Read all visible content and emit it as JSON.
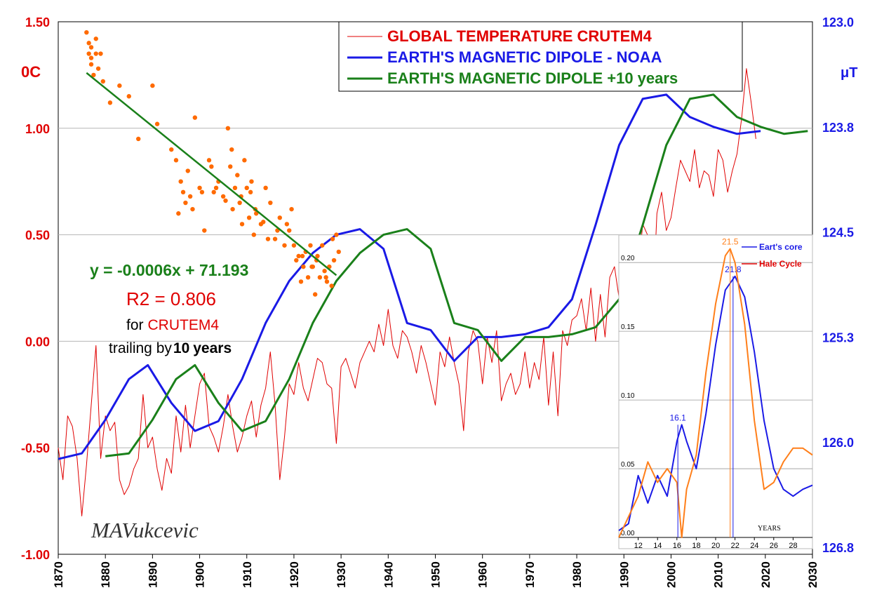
{
  "chart_data": {
    "type": "line",
    "x_axis": {
      "range": [
        1870,
        2030
      ],
      "ticks": [
        "1870",
        "1880",
        "1890",
        "1900",
        "1910",
        "1920",
        "1930",
        "1940",
        "1950",
        "1960",
        "1970",
        "1980",
        "1990",
        "2000",
        "2010",
        "2020",
        "2030"
      ]
    },
    "y_left": {
      "unit": "0C",
      "range": [
        -1.0,
        1.5
      ],
      "ticks": [
        "1.50",
        "1.00",
        "0.50",
        "0.00",
        "-0.50",
        "-1.00"
      ],
      "tick_values": [
        1.5,
        1.0,
        0.5,
        0.0,
        -0.5,
        -1.0
      ]
    },
    "y_right": {
      "unit": "μT",
      "range": [
        123.0,
        126.8
      ],
      "inverted": true,
      "ticks": [
        "123.0",
        "123.8",
        "124.5",
        "125.3",
        "126.0",
        "126.8"
      ],
      "tick_values": [
        123.0,
        123.75,
        124.5,
        125.25,
        126.0,
        126.75
      ]
    },
    "grid": true,
    "legend": {
      "placement": "top-right",
      "entries": [
        {
          "label": "GLOBAL TEMPERATURE CRUTEM4",
          "color": "#e00000"
        },
        {
          "label": "EARTH'S MAGNETIC DIPOLE - NOAA",
          "color": "#1a1ae6"
        },
        {
          "label": "EARTH'S MAGNETIC DIPOLE +",
          "label_suffix": "10 years",
          "color": "#1a801a"
        }
      ]
    },
    "annotations": {
      "equation": "y = -0.0006x + 71.193",
      "r2": "R2 = 0.806",
      "for_prefix": "for",
      "for_name": "CRUTEM4",
      "trailing_prefix": "trailing by",
      "trailing_num": "10",
      "trailing_unit": "years",
      "signature": "MAVukcevic"
    },
    "series": [
      {
        "name": "GLOBAL TEMPERATURE CRUTEM4",
        "axis": "left",
        "color": "#e00000",
        "x": [
          1870,
          1871,
          1872,
          1873,
          1874,
          1875,
          1876,
          1877,
          1878,
          1879,
          1880,
          1881,
          1882,
          1883,
          1884,
          1885,
          1886,
          1887,
          1888,
          1889,
          1890,
          1891,
          1892,
          1893,
          1894,
          1895,
          1896,
          1897,
          1898,
          1899,
          1900,
          1901,
          1902,
          1903,
          1904,
          1905,
          1906,
          1907,
          1908,
          1909,
          1910,
          1911,
          1912,
          1913,
          1914,
          1915,
          1916,
          1917,
          1918,
          1919,
          1920,
          1921,
          1922,
          1923,
          1924,
          1925,
          1926,
          1927,
          1928,
          1929,
          1930,
          1931,
          1932,
          1933,
          1934,
          1935,
          1936,
          1937,
          1938,
          1939,
          1940,
          1941,
          1942,
          1943,
          1944,
          1945,
          1946,
          1947,
          1948,
          1949,
          1950,
          1951,
          1952,
          1953,
          1954,
          1955,
          1956,
          1957,
          1958,
          1959,
          1960,
          1961,
          1962,
          1963,
          1964,
          1965,
          1966,
          1967,
          1968,
          1969,
          1970,
          1971,
          1972,
          1973,
          1974,
          1975,
          1976,
          1977,
          1978,
          1979,
          1980,
          1981,
          1982,
          1983,
          1984,
          1985,
          1986,
          1987,
          1988,
          1989,
          1990,
          1991,
          1992,
          1993,
          1994,
          1995,
          1996,
          1997,
          1998,
          1999,
          2000,
          2001,
          2002,
          2003,
          2004,
          2005,
          2006,
          2007,
          2008,
          2009,
          2010,
          2011,
          2012,
          2013,
          2014,
          2015,
          2016,
          2017,
          2018
        ],
        "y": [
          -0.5,
          -0.65,
          -0.35,
          -0.4,
          -0.55,
          -0.82,
          -0.58,
          -0.3,
          -0.02,
          -0.55,
          -0.35,
          -0.42,
          -0.38,
          -0.65,
          -0.72,
          -0.68,
          -0.6,
          -0.55,
          -0.25,
          -0.5,
          -0.45,
          -0.6,
          -0.7,
          -0.55,
          -0.62,
          -0.35,
          -0.52,
          -0.3,
          -0.5,
          -0.35,
          -0.2,
          -0.15,
          -0.4,
          -0.45,
          -0.52,
          -0.4,
          -0.25,
          -0.4,
          -0.52,
          -0.45,
          -0.35,
          -0.28,
          -0.45,
          -0.3,
          -0.22,
          -0.05,
          -0.3,
          -0.65,
          -0.45,
          -0.2,
          -0.25,
          -0.1,
          -0.22,
          -0.28,
          -0.18,
          -0.08,
          -0.1,
          -0.2,
          -0.22,
          -0.48,
          -0.12,
          -0.08,
          -0.15,
          -0.22,
          -0.1,
          -0.05,
          0.0,
          -0.05,
          0.08,
          -0.02,
          0.15,
          -0.02,
          -0.08,
          0.05,
          0.02,
          -0.05,
          -0.15,
          -0.02,
          -0.1,
          -0.2,
          -0.3,
          -0.05,
          -0.12,
          0.02,
          -0.1,
          -0.2,
          -0.42,
          -0.05,
          0.05,
          0.0,
          -0.2,
          0.02,
          -0.1,
          0.05,
          -0.28,
          -0.2,
          -0.15,
          -0.25,
          -0.2,
          -0.05,
          -0.22,
          -0.1,
          -0.18,
          0.02,
          -0.3,
          -0.05,
          -0.35,
          0.05,
          -0.02,
          0.1,
          0.12,
          0.2,
          0.05,
          0.25,
          0.0,
          0.22,
          0.02,
          0.3,
          0.35,
          0.2,
          0.45,
          0.38,
          0.15,
          0.32,
          0.55,
          0.5,
          0.1,
          0.6,
          0.7,
          0.52,
          0.58,
          0.72,
          0.85,
          0.8,
          0.75,
          0.9,
          0.72,
          0.8,
          0.78,
          0.68,
          0.9,
          0.85,
          0.7,
          0.8,
          0.88,
          1.05,
          1.28,
          1.12,
          0.95
        ]
      },
      {
        "name": "EARTH'S MAGNETIC DIPOLE - NOAA",
        "axis": "right",
        "color": "#1a1ae6",
        "x": [
          1870,
          1875,
          1880,
          1885,
          1889,
          1894,
          1899,
          1904,
          1909,
          1914,
          1919,
          1924,
          1929,
          1934,
          1939,
          1944,
          1949,
          1954,
          1959,
          1964,
          1969,
          1974,
          1979,
          1984,
          1989,
          1994,
          1999,
          2004,
          2009,
          2014,
          2019
        ],
        "y": [
          126.12,
          126.08,
          125.84,
          125.55,
          125.45,
          125.72,
          125.92,
          125.85,
          125.55,
          125.15,
          124.85,
          124.65,
          124.52,
          124.48,
          124.62,
          125.15,
          125.2,
          125.42,
          125.25,
          125.25,
          125.23,
          125.18,
          124.98,
          124.45,
          123.88,
          123.55,
          123.52,
          123.68,
          123.75,
          123.8,
          123.78
        ]
      },
      {
        "name": "EARTH'S MAGNETIC DIPOLE +10 years",
        "axis": "right",
        "color": "#1a801a",
        "x": [
          1880,
          1885,
          1890,
          1895,
          1899,
          1904,
          1909,
          1914,
          1919,
          1924,
          1929,
          1934,
          1939,
          1944,
          1949,
          1954,
          1959,
          1964,
          1969,
          1974,
          1979,
          1984,
          1989,
          1994,
          1999,
          2004,
          2009,
          2014,
          2019,
          2024,
          2029
        ],
        "y": [
          126.1,
          126.08,
          125.84,
          125.55,
          125.45,
          125.72,
          125.92,
          125.85,
          125.55,
          125.15,
          124.85,
          124.65,
          124.52,
          124.48,
          124.62,
          125.15,
          125.2,
          125.42,
          125.25,
          125.25,
          125.23,
          125.18,
          124.98,
          124.45,
          123.88,
          123.55,
          123.52,
          123.68,
          123.75,
          123.8,
          123.78
        ]
      },
      {
        "name": "scatter",
        "type": "scatter",
        "axis": "left",
        "color": "#ff6a00",
        "x": [
          1876,
          1876.5,
          1877,
          1877,
          1877.5,
          1878,
          1878,
          1876.5,
          1877,
          1878.5,
          1879,
          1879.5,
          1881,
          1883,
          1885,
          1887,
          1890,
          1891,
          1894,
          1895,
          1896,
          1896.5,
          1897,
          1897.5,
          1898,
          1899,
          1900,
          1901,
          1902,
          1903,
          1904,
          1905,
          1906,
          1906.5,
          1907,
          1907.5,
          1908,
          1908.5,
          1909,
          1909.5,
          1910,
          1910.5,
          1911,
          1911.5,
          1912,
          1913,
          1914,
          1915,
          1916,
          1917,
          1918,
          1919,
          1920,
          1920.5,
          1921,
          1921.5,
          1922,
          1922.5,
          1923,
          1923.5,
          1924,
          1924.5,
          1925,
          1925.5,
          1926,
          1926.5,
          1927,
          1927.5,
          1928,
          1928.5,
          1929,
          1929.5,
          1895.5,
          1898.5,
          1900.5,
          1903.5,
          1905.5,
          1908.8,
          1911.8,
          1914.5,
          1918.5,
          1921.8,
          1923.8,
          1926.8,
          1928.2,
          1919.5,
          1902.5,
          1906.8,
          1910.8,
          1913.5,
          1916.5,
          1924.8
        ],
        "y": [
          1.45,
          1.4,
          1.3,
          1.38,
          1.25,
          1.35,
          1.42,
          1.35,
          1.33,
          1.28,
          1.35,
          1.22,
          1.12,
          1.2,
          1.15,
          0.95,
          1.2,
          1.02,
          0.9,
          0.85,
          0.75,
          0.7,
          0.65,
          0.8,
          0.68,
          1.05,
          0.72,
          0.52,
          0.85,
          0.7,
          0.75,
          0.68,
          1.0,
          0.82,
          0.62,
          0.72,
          0.78,
          0.65,
          0.55,
          0.85,
          0.72,
          0.58,
          0.75,
          0.5,
          0.6,
          0.55,
          0.72,
          0.65,
          0.48,
          0.58,
          0.45,
          0.52,
          0.45,
          0.38,
          0.4,
          0.28,
          0.35,
          0.42,
          0.3,
          0.45,
          0.35,
          0.22,
          0.4,
          0.3,
          0.45,
          0.33,
          0.28,
          0.35,
          0.26,
          0.38,
          0.5,
          0.42,
          0.6,
          0.62,
          0.7,
          0.72,
          0.66,
          0.68,
          0.62,
          0.48,
          0.55,
          0.4,
          0.35,
          0.3,
          0.48,
          0.62,
          0.82,
          0.9,
          0.7,
          0.56,
          0.52,
          0.38
        ]
      }
    ],
    "inset": {
      "type": "line",
      "labels": [
        "Eart's core",
        "Hale Cycle"
      ],
      "colors": [
        "#1a1ae6",
        "#ff7f1a"
      ],
      "x_range": [
        10,
        30
      ],
      "x_ticks": [
        "12",
        "14",
        "16",
        "18",
        "20",
        "22",
        "24",
        "26",
        "28"
      ],
      "y_range": [
        0,
        0.22
      ],
      "y_ticks": [
        "0.20",
        "0.15",
        "0.10",
        "0.05",
        "0.00"
      ],
      "y_tick_values": [
        0.2,
        0.15,
        0.1,
        0.05,
        0.0
      ],
      "x_title": "YEARS",
      "peaks": [
        {
          "x": 16.1,
          "y": 0.082,
          "label": "16.1",
          "color": "#1a1ae6"
        },
        {
          "x": 21.8,
          "y": 0.19,
          "label": "21.8",
          "color": "#1a1ae6"
        },
        {
          "x": 21.5,
          "y": 0.21,
          "label": "21.5",
          "color": "#ff7f1a"
        }
      ],
      "series": [
        {
          "name": "Eart's core",
          "x": [
            10,
            11,
            12,
            13,
            14,
            15,
            16,
            16.5,
            17,
            18,
            19,
            20,
            21,
            22,
            23,
            24,
            25,
            26,
            27,
            28,
            29,
            30
          ],
          "y": [
            0.005,
            0.01,
            0.045,
            0.025,
            0.045,
            0.03,
            0.07,
            0.082,
            0.07,
            0.05,
            0.09,
            0.14,
            0.18,
            0.19,
            0.175,
            0.135,
            0.085,
            0.05,
            0.035,
            0.03,
            0.035,
            0.038
          ]
        },
        {
          "name": "Hale Cycle",
          "x": [
            10,
            11,
            12,
            13,
            14,
            15,
            16,
            16.5,
            17,
            18,
            19,
            20,
            21,
            21.5,
            22,
            23,
            24,
            25,
            26,
            27,
            28,
            29,
            30
          ],
          "y": [
            0.0,
            0.015,
            0.03,
            0.055,
            0.04,
            0.05,
            0.04,
            0.0,
            0.035,
            0.06,
            0.12,
            0.17,
            0.205,
            0.21,
            0.2,
            0.155,
            0.085,
            0.035,
            0.04,
            0.055,
            0.065,
            0.065,
            0.06
          ]
        }
      ]
    }
  }
}
